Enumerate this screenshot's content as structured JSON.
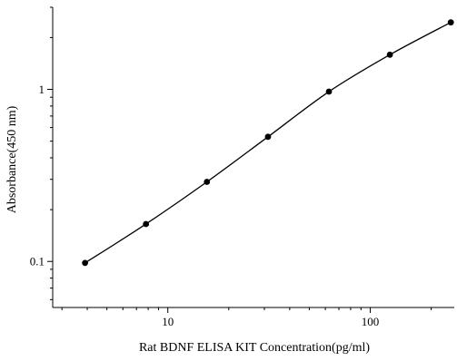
{
  "chart_data": {
    "type": "line",
    "title": "",
    "xlabel": "Rat BDNF ELISA KIT Concentration(pg/ml)",
    "ylabel": "Absorbance(450 nm)",
    "xscale": "log",
    "yscale": "log",
    "xlim": [
      2.7,
      260
    ],
    "ylim": [
      0.054,
      3.0
    ],
    "x_ticks": [
      {
        "value": 10,
        "label": "10"
      },
      {
        "value": 100,
        "label": "100"
      }
    ],
    "y_ticks": [
      {
        "value": 0.1,
        "label": "0.1"
      },
      {
        "value": 1,
        "label": "1"
      }
    ],
    "grid": false,
    "legend": "none",
    "colors": {
      "line": "#000000",
      "marker": "#000000",
      "axis": "#000000"
    },
    "series": [
      {
        "x": [
          3.9,
          7.8,
          15.6,
          31.25,
          62.5,
          125,
          250
        ],
        "y": [
          0.098,
          0.165,
          0.29,
          0.53,
          0.97,
          1.59,
          2.45
        ]
      }
    ]
  }
}
